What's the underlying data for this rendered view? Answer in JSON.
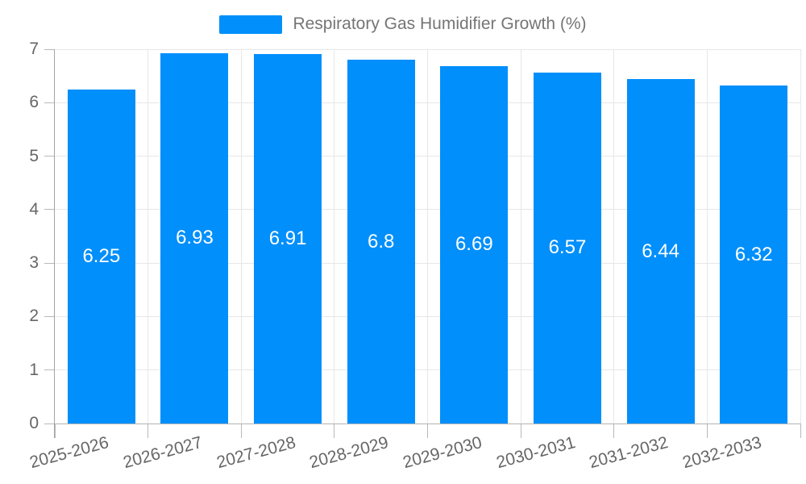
{
  "legend": {
    "label": "Respiratory Gas Humidifier Growth (%)",
    "swatch_color": "#008FFB"
  },
  "chart_data": {
    "type": "bar",
    "title": "Respiratory Gas Humidifier Growth (%)",
    "categories": [
      "2025-2026",
      "2026-2027",
      "2027-2028",
      "2028-2029",
      "2029-2030",
      "2030-2031",
      "2031-2032",
      "2032-2033"
    ],
    "series": [
      {
        "name": "Respiratory Gas Humidifier Growth (%)",
        "values": [
          6.25,
          6.93,
          6.91,
          6.8,
          6.69,
          6.57,
          6.44,
          6.32
        ]
      }
    ],
    "value_labels": [
      "6.25",
      "6.93",
      "6.91",
      "6.8",
      "6.69",
      "6.57",
      "6.44",
      "6.32"
    ],
    "xlabel": "",
    "ylabel": "",
    "ylim": [
      0,
      7
    ],
    "yticks": [
      0,
      1,
      2,
      3,
      4,
      5,
      6,
      7
    ],
    "grid": true,
    "legend_position": "top",
    "bar_color": "#008FFB",
    "value_label_color": "#ffffff",
    "axis_label_color": "#666666",
    "legend_text_color": "#757575",
    "grid_color": "#e7e7e7"
  }
}
